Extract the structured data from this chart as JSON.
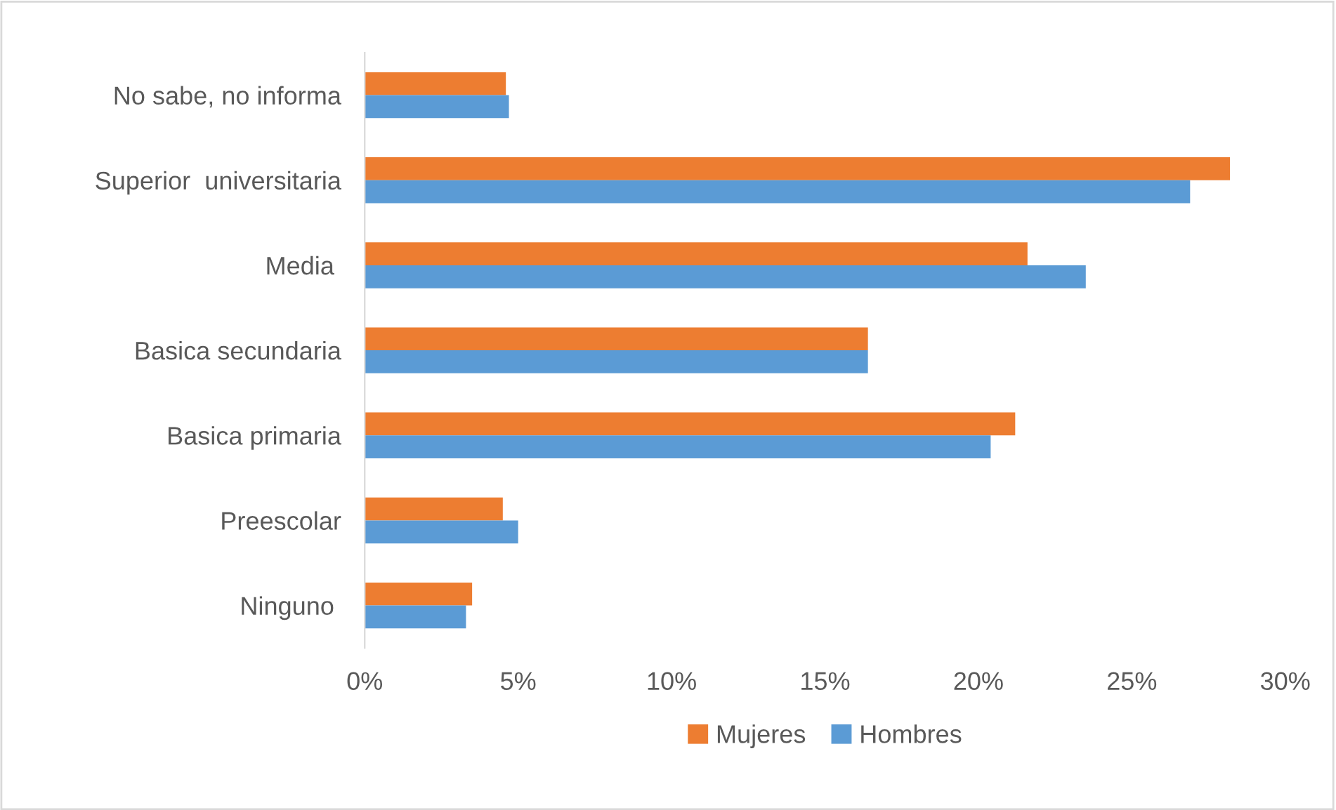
{
  "chart_data": {
    "type": "bar",
    "orientation": "horizontal",
    "categories": [
      "No sabe, no informa",
      "Superior  universitaria",
      "Media ",
      "Basica secundaria",
      "Basica primaria",
      "Preescolar",
      "Ninguno "
    ],
    "series": [
      {
        "name": "Mujeres",
        "color": "#ed7d31",
        "values": [
          4.6,
          28.2,
          21.6,
          16.4,
          21.2,
          4.5,
          3.5
        ]
      },
      {
        "name": "Hombres",
        "color": "#5b9bd5",
        "values": [
          4.7,
          26.9,
          23.5,
          16.4,
          20.4,
          5.0,
          3.3
        ]
      }
    ],
    "xlim": [
      0,
      30
    ],
    "xticks": [
      {
        "value": 0,
        "label": "0%"
      },
      {
        "value": 5,
        "label": "5%"
      },
      {
        "value": 10,
        "label": "10%"
      },
      {
        "value": 15,
        "label": "15%"
      },
      {
        "value": 20,
        "label": "20%"
      },
      {
        "value": 25,
        "label": "25%"
      },
      {
        "value": 30,
        "label": "30%"
      }
    ],
    "grid": false,
    "legend": "bottom"
  }
}
